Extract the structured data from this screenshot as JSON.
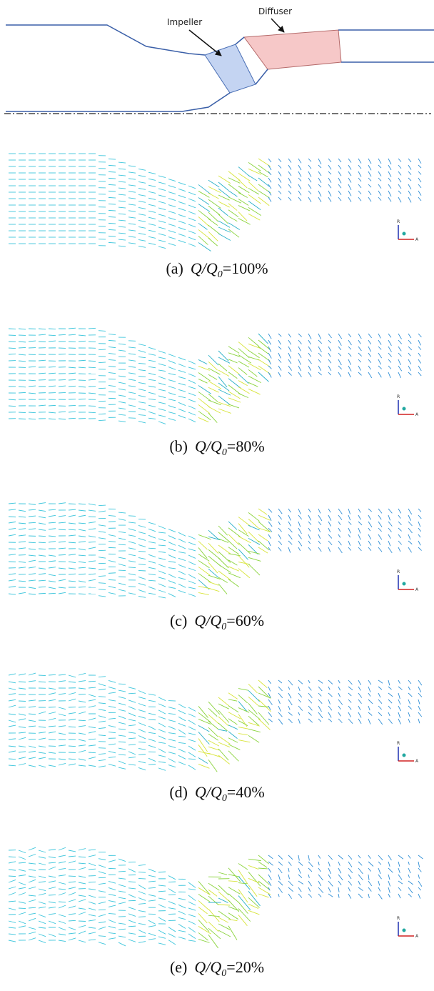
{
  "diagram": {
    "labels": {
      "impeller": "Impeller",
      "diffuser": "Diffuser"
    }
  },
  "panels": [
    {
      "caption": [
        "(a)",
        "Q/Q",
        "0",
        "=100%"
      ]
    },
    {
      "caption": [
        "(b)",
        "Q/Q",
        "0",
        "=80%"
      ]
    },
    {
      "caption": [
        "(c)",
        "Q/Q",
        "0",
        "=60%"
      ]
    },
    {
      "caption": [
        "(d)",
        "Q/Q",
        "0",
        "=40%"
      ]
    },
    {
      "caption": [
        "(e)",
        "Q/Q",
        "0",
        "=20%"
      ]
    }
  ],
  "axis_icon": {
    "r": "R",
    "a": "A"
  }
}
